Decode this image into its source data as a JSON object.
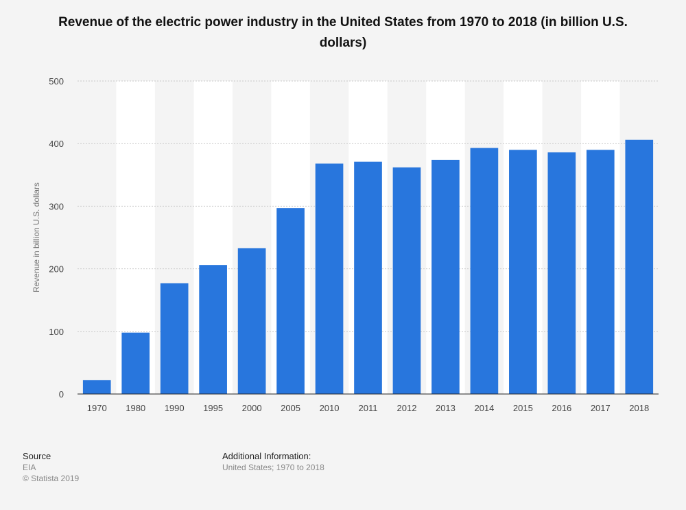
{
  "chart_data": {
    "type": "bar",
    "title": "Revenue of the electric power industry in the United States from 1970 to 2018 (in billion U.S. dollars)",
    "xlabel": "",
    "ylabel": "Revenue in billion U.S. dollars",
    "categories": [
      "1970",
      "1980",
      "1990",
      "1995",
      "2000",
      "2005",
      "2010",
      "2011",
      "2012",
      "2013",
      "2014",
      "2015",
      "2016",
      "2017",
      "2018"
    ],
    "values": [
      22,
      98,
      177,
      206,
      233,
      297,
      368,
      371,
      362,
      374,
      393,
      390,
      386,
      390,
      406
    ],
    "ylim": [
      0,
      500
    ],
    "yticks": [
      0,
      100,
      200,
      300,
      400,
      500
    ],
    "grid": true,
    "bar_color": "#2876dd"
  },
  "footer": {
    "source_label": "Source",
    "source_value": "EIA",
    "copyright": "© Statista 2019",
    "additional_label": "Additional Information:",
    "additional_value": "United States; 1970 to 2018"
  }
}
